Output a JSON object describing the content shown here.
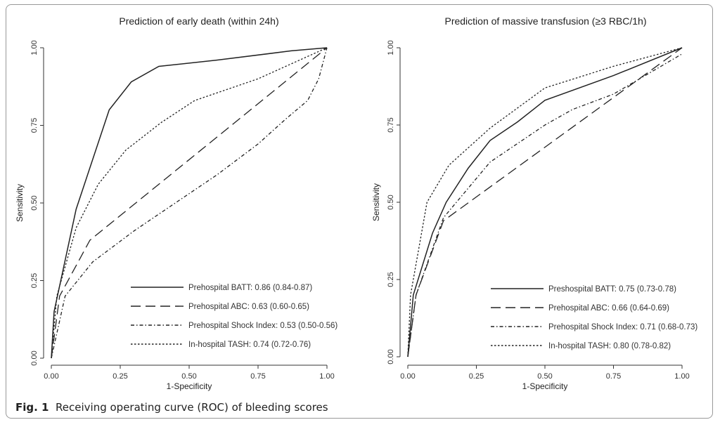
{
  "caption": {
    "label": "Fig. 1",
    "text": "Receiving operating curve (ROC) of bleeding scores"
  },
  "chart_data": [
    {
      "type": "line",
      "title": "Prediction of early death (within 24h)",
      "xlabel": "1-Specificity",
      "ylabel": "Sensitivity",
      "xlim": [
        0,
        1
      ],
      "ylim": [
        0,
        1
      ],
      "xticks": [
        "0.00",
        "0.25",
        "0.50",
        "0.75",
        "1.00"
      ],
      "yticks": [
        "0.00",
        "0.25",
        "0.50",
        "0.75",
        "1.00"
      ],
      "grid": false,
      "legend_position": "bottom-right",
      "series": [
        {
          "name": "Prehospital BATT: 0.86 (0.84-0.87)",
          "style": "solid",
          "x": [
            0,
            0.01,
            0.09,
            0.21,
            0.29,
            0.39,
            0.6,
            0.87,
            1
          ],
          "y": [
            0,
            0.15,
            0.48,
            0.8,
            0.89,
            0.94,
            0.96,
            0.99,
            1
          ]
        },
        {
          "name": "Prehospital ABC: 0.63 (0.60-0.65)",
          "style": "longdash",
          "x": [
            0,
            0.03,
            0.14,
            1
          ],
          "y": [
            0,
            0.2,
            0.38,
            1
          ]
        },
        {
          "name": "Prehospital Shock Index: 0.53 (0.50-0.56)",
          "style": "dashdot",
          "x": [
            0,
            0.05,
            0.15,
            0.3,
            0.45,
            0.6,
            0.75,
            0.85,
            0.93,
            0.97,
            1
          ],
          "y": [
            0,
            0.2,
            0.31,
            0.41,
            0.5,
            0.59,
            0.69,
            0.77,
            0.83,
            0.9,
            1
          ]
        },
        {
          "name": "In-hospital TASH: 0.74 (0.72-0.76)",
          "style": "dotted",
          "x": [
            0,
            0.02,
            0.09,
            0.17,
            0.27,
            0.4,
            0.52,
            0.75,
            1
          ],
          "y": [
            0,
            0.2,
            0.42,
            0.56,
            0.67,
            0.76,
            0.83,
            0.9,
            1
          ]
        }
      ]
    },
    {
      "type": "line",
      "title": "Prediction of massive transfusion (≥3 RBC/1h)",
      "xlabel": "1-Specificity",
      "ylabel": "Sensitivity",
      "xlim": [
        0,
        1
      ],
      "ylim": [
        0,
        1
      ],
      "xticks": [
        "0.00",
        "0.25",
        "0.50",
        "0.75",
        "1.00"
      ],
      "yticks": [
        "0.00",
        "0.25",
        "0.50",
        "0.75",
        "1.00"
      ],
      "grid": false,
      "legend_position": "bottom-right",
      "series": [
        {
          "name": "Preshospital BATT: 0.75 (0.73-0.78)",
          "style": "solid",
          "x": [
            0,
            0.02,
            0.09,
            0.14,
            0.22,
            0.3,
            0.4,
            0.5,
            0.75,
            1
          ],
          "y": [
            0,
            0.2,
            0.4,
            0.5,
            0.61,
            0.7,
            0.76,
            0.83,
            0.91,
            1
          ]
        },
        {
          "name": "Prehospital ABC: 0.66 (0.64-0.69)",
          "style": "longdash",
          "x": [
            0,
            0.03,
            0.13,
            1
          ],
          "y": [
            0,
            0.2,
            0.44,
            1
          ]
        },
        {
          "name": "Prehospital Shock Index: 0.71 (0.68-0.73)",
          "style": "dashdot",
          "x": [
            0,
            0.03,
            0.13,
            0.3,
            0.5,
            0.6,
            0.75,
            1
          ],
          "y": [
            0,
            0.2,
            0.45,
            0.63,
            0.75,
            0.8,
            0.85,
            0.98
          ]
        },
        {
          "name": "In-hospital TASH: 0.80 (0.78-0.82)",
          "style": "dotted",
          "x": [
            0,
            0.01,
            0.07,
            0.15,
            0.3,
            0.5,
            0.75,
            1
          ],
          "y": [
            0,
            0.2,
            0.5,
            0.62,
            0.74,
            0.87,
            0.94,
            1
          ]
        }
      ]
    }
  ]
}
